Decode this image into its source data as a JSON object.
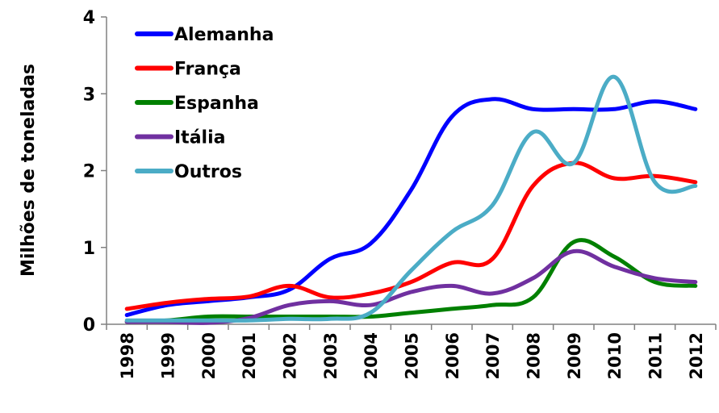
{
  "chart_data": {
    "type": "line",
    "title": "",
    "xlabel": "",
    "ylabel": "Milhões de toneladas",
    "ylim": [
      0,
      4
    ],
    "yticks": [
      "0",
      "1",
      "2",
      "3",
      "4"
    ],
    "categories": [
      "1998",
      "1999",
      "2000",
      "2001",
      "2002",
      "2003",
      "2004",
      "2005",
      "2006",
      "2007",
      "2008",
      "2009",
      "2010",
      "2011",
      "2012"
    ],
    "legend_position": "top-left",
    "grid": false,
    "series": [
      {
        "name": "Alemanha",
        "color": "#0000ff",
        "values": [
          0.12,
          0.25,
          0.3,
          0.35,
          0.45,
          0.85,
          1.05,
          1.75,
          2.7,
          2.93,
          2.8,
          2.8,
          2.8,
          2.9,
          2.8
        ]
      },
      {
        "name": "França",
        "color": "#ff0000",
        "values": [
          0.2,
          0.28,
          0.33,
          0.36,
          0.5,
          0.35,
          0.4,
          0.55,
          0.8,
          0.85,
          1.8,
          2.1,
          1.9,
          1.93,
          1.85
        ]
      },
      {
        "name": "Espanha",
        "color": "#008000",
        "values": [
          0.03,
          0.05,
          0.1,
          0.1,
          0.1,
          0.1,
          0.1,
          0.15,
          0.2,
          0.25,
          0.35,
          1.07,
          0.88,
          0.55,
          0.5
        ]
      },
      {
        "name": "Itália",
        "color": "#7030a0",
        "values": [
          0.03,
          0.03,
          0.02,
          0.08,
          0.25,
          0.3,
          0.25,
          0.42,
          0.5,
          0.4,
          0.6,
          0.95,
          0.75,
          0.6,
          0.55
        ]
      },
      {
        "name": "Outros",
        "color": "#4bacc6",
        "values": [
          0.05,
          0.05,
          0.05,
          0.05,
          0.07,
          0.07,
          0.15,
          0.7,
          1.2,
          1.55,
          2.5,
          2.1,
          3.22,
          1.85,
          1.8
        ]
      }
    ]
  }
}
